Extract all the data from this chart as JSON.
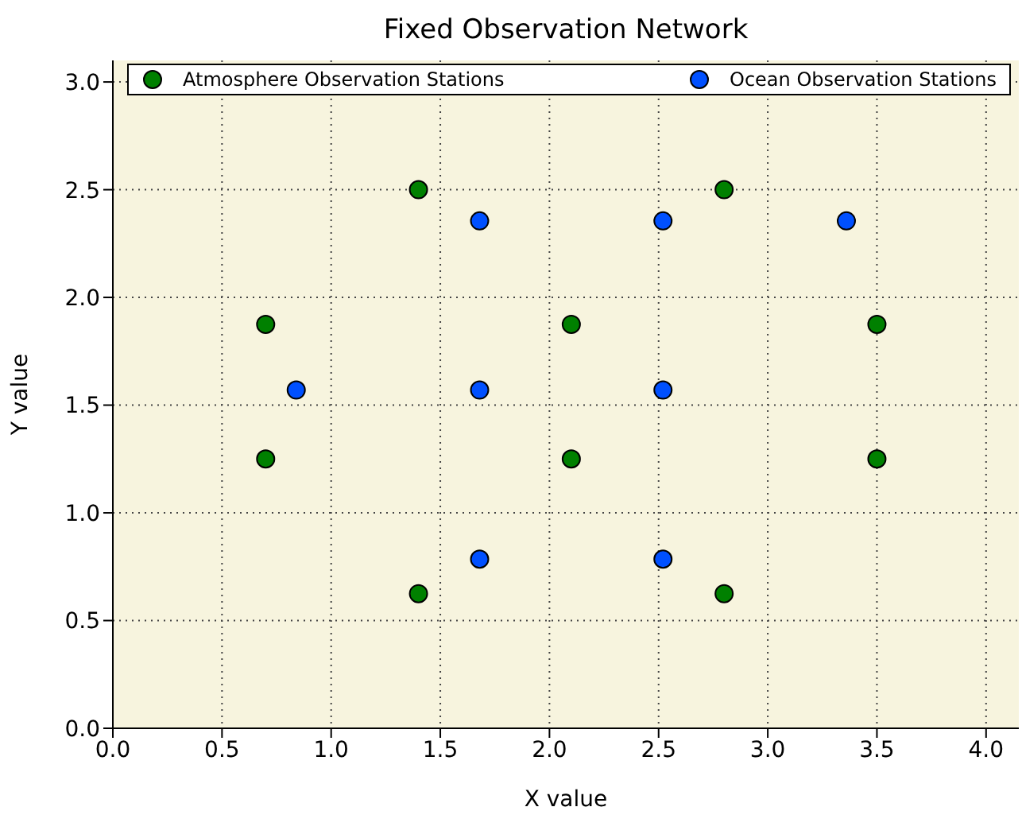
{
  "chart_data": {
    "type": "scatter",
    "title": "Fixed Observation Network",
    "xlabel": "X value",
    "ylabel": "Y value",
    "xlim": [
      0,
      4.15
    ],
    "xticks": [
      {
        "value": 0,
        "label": "0.0"
      },
      0.5,
      {
        "value": 1,
        "label": "1.0"
      },
      1.5,
      {
        "value": 2,
        "label": "2.0"
      },
      2.5,
      {
        "value": 3,
        "label": "3.0"
      },
      3.5,
      {
        "value": 4,
        "label": "4.0"
      }
    ],
    "ylim": [
      0,
      3.1
    ],
    "yticks": [
      {
        "value": 0,
        "label": "0.0"
      },
      0.5,
      {
        "value": 1,
        "label": "1.0"
      },
      1.5,
      {
        "value": 2,
        "label": "2.0"
      },
      2.5,
      {
        "value": 3,
        "label": "3.0"
      }
    ],
    "grid": true,
    "legend": "top",
    "marker": "circle",
    "series": [
      {
        "name": "Atmosphere Observation Stations",
        "color": "#008000",
        "x": [
          0.7,
          0.7,
          1.4,
          1.4,
          2.1,
          2.1,
          2.8,
          2.8,
          3.5,
          3.5
        ],
        "values": [
          1.25,
          1.875,
          0.625,
          2.5,
          1.25,
          1.875,
          0.625,
          2.5,
          1.25,
          1.875
        ]
      },
      {
        "name": "Ocean Observation Stations",
        "color": "#0050ff",
        "x": [
          0.84,
          1.68,
          1.68,
          1.68,
          2.52,
          2.52,
          2.52,
          3.36
        ],
        "values": [
          1.57,
          0.785,
          1.57,
          2.355,
          0.785,
          1.57,
          2.355,
          2.355
        ]
      }
    ]
  }
}
